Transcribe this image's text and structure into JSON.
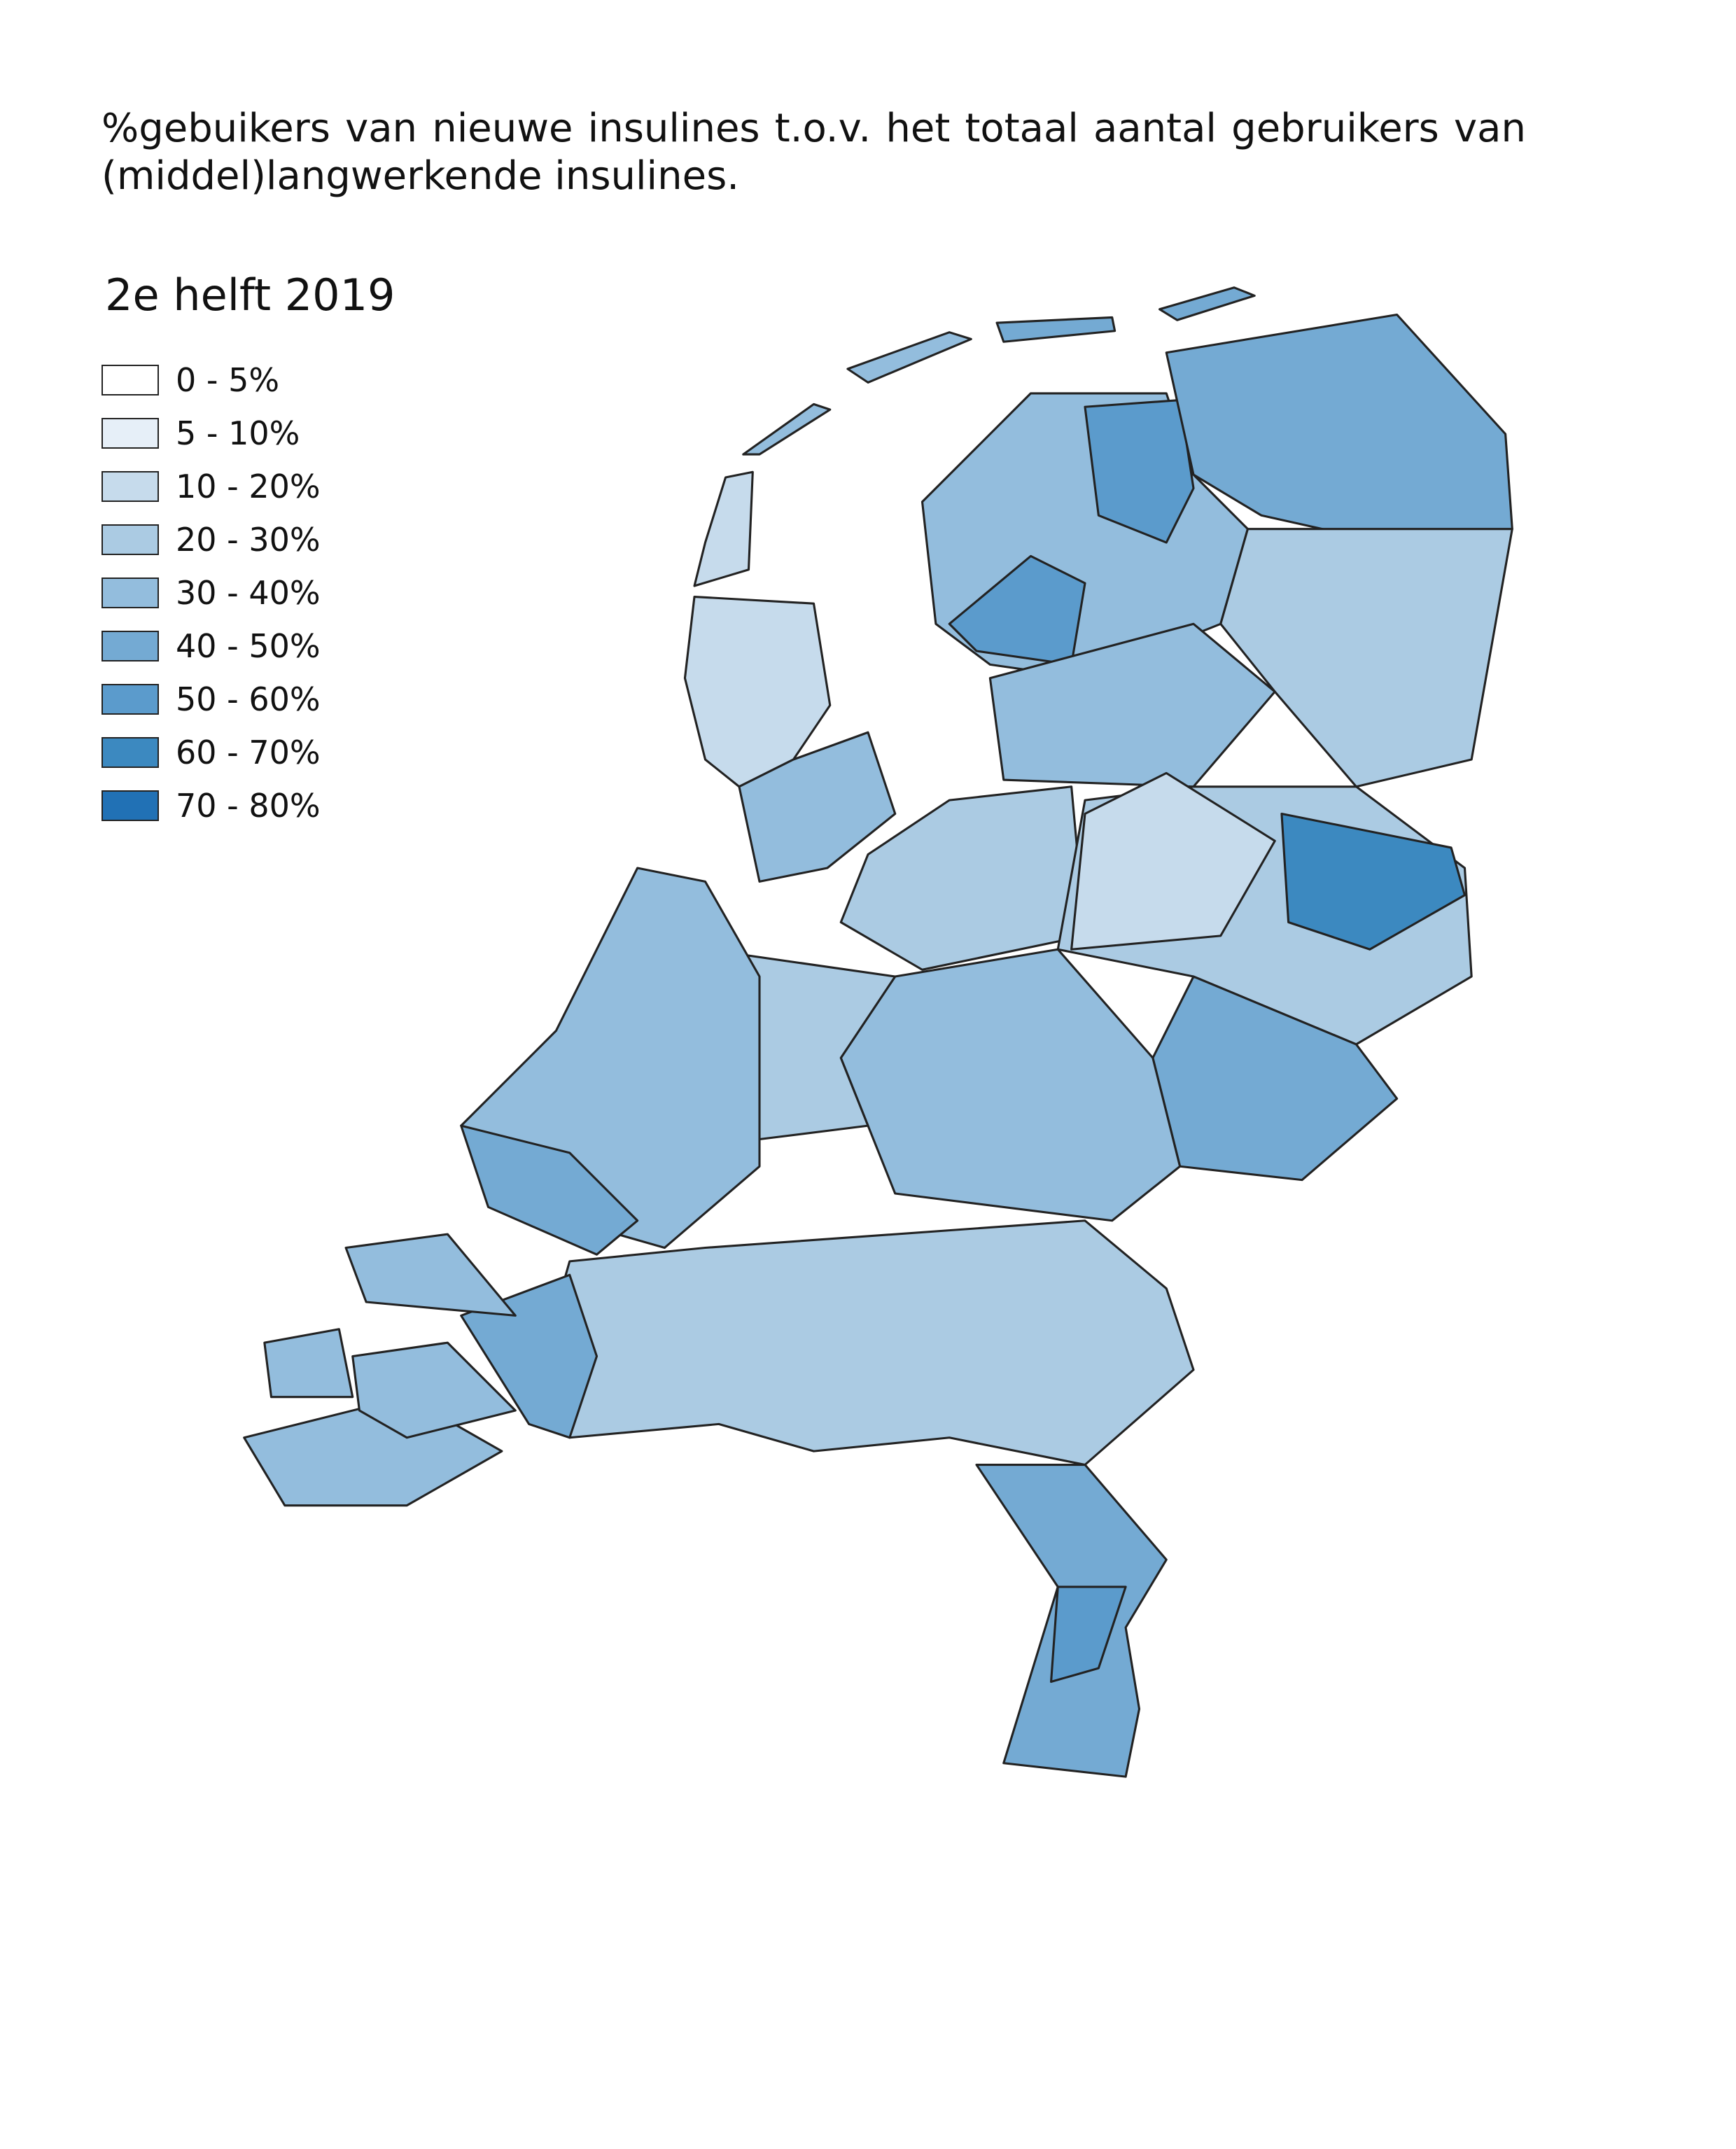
{
  "title": "%gebuikers van nieuwe insulines t.o.v. het totaal aantal gebruikers van (middel)langwerkende insulines.",
  "subtitle": "2e helft 2019",
  "legend": [
    {
      "label": "0 - 5%",
      "color": "#ffffff"
    },
    {
      "label": "5 - 10%",
      "color": "#e6eff8"
    },
    {
      "label": "10 - 20%",
      "color": "#c6dbec"
    },
    {
      "label": "20 - 30%",
      "color": "#abcbe3"
    },
    {
      "label": "30 - 40%",
      "color": "#93bddd"
    },
    {
      "label": "40 - 50%",
      "color": "#74aad3"
    },
    {
      "label": "50 - 60%",
      "color": "#5b9bcc"
    },
    {
      "label": "60 - 70%",
      "color": "#3c89c0"
    },
    {
      "label": "70 - 80%",
      "color": "#2171b5"
    }
  ]
}
